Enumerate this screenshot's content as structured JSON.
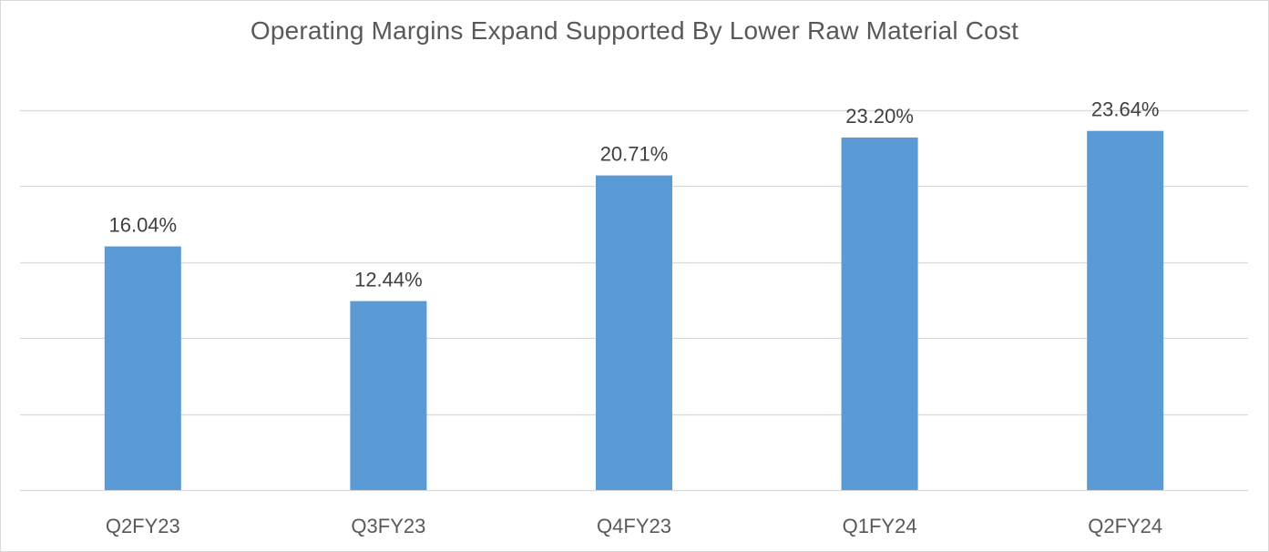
{
  "chart_data": {
    "type": "bar",
    "title": "Operating Margins Expand Supported By Lower Raw Material Cost",
    "xlabel": "",
    "ylabel": "",
    "categories": [
      "Q2FY23",
      "Q3FY23",
      "Q4FY23",
      "Q1FY24",
      "Q2FY24"
    ],
    "values": [
      16.04,
      12.44,
      20.71,
      23.2,
      23.64
    ],
    "data_labels": [
      "16.04%",
      "12.44%",
      "20.71%",
      "23.20%",
      "23.64%"
    ],
    "ylim": [
      0,
      25
    ],
    "y_gridline_step": 5,
    "y_tick_labels_visible": false,
    "grid": true,
    "legend": "none",
    "colors": {
      "bar": "#5b9bd5",
      "grid": "#d9d9d9",
      "title": "#595959",
      "data_label": "#404040",
      "tick_label": "#595959"
    }
  }
}
